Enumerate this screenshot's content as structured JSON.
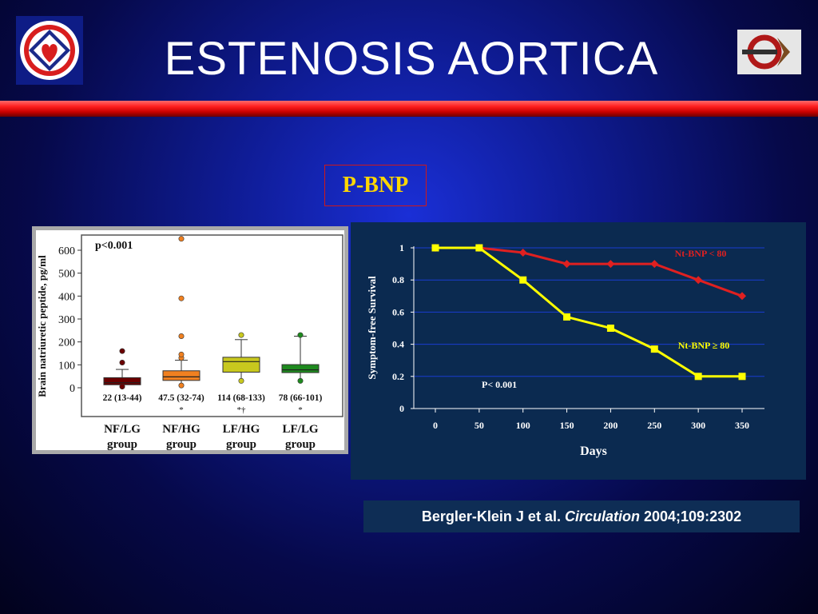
{
  "slide": {
    "title": "ESTENOSIS AORTICA",
    "badge": "P-BNP",
    "citation": {
      "authors": "Bergler-Klein J et al.",
      "journal": "Circulation",
      "ref": "2004;109:2302"
    }
  },
  "colors": {
    "background": "#0f1c96",
    "title_bar_red": "#e00000",
    "badge_text": "#ffd700",
    "nt_bnp_low": "#e02020",
    "nt_bnp_high": "#ffff00"
  },
  "chart_data": [
    {
      "type": "box",
      "ylabel": "Brain natriuretic peptide, pg/ml",
      "annotation": "p<0.001",
      "yticks": [
        0,
        100,
        200,
        300,
        400,
        500,
        600
      ],
      "ylim": [
        -100,
        650
      ],
      "grid": false,
      "groups": [
        {
          "label_line1": "NF/LG",
          "label_line2": "group",
          "median_text": "22 (13-44)",
          "marker": "",
          "color": "#6b0000",
          "median": 22,
          "q1": 13,
          "q3": 44,
          "whisker_low": 5,
          "whisker_high": 80,
          "outliers": [
            110,
            160,
            5
          ]
        },
        {
          "label_line1": "NF/HG",
          "label_line2": "group",
          "median_text": "47.5 (32-74)",
          "marker": "*",
          "color": "#f08020",
          "median": 47.5,
          "q1": 32,
          "q3": 74,
          "whisker_low": 10,
          "whisker_high": 120,
          "outliers": [
            130,
            145,
            225,
            390,
            650,
            10
          ]
        },
        {
          "label_line1": "LF/HG",
          "label_line2": "group",
          "median_text": "114 (68-133)",
          "marker": "*†",
          "color": "#c8c81e",
          "median": 114,
          "q1": 68,
          "q3": 133,
          "whisker_low": 30,
          "whisker_high": 210,
          "outliers": [
            230,
            30
          ]
        },
        {
          "label_line1": "LF/LG",
          "label_line2": "group",
          "median_text": "78 (66-101)",
          "marker": "*",
          "color": "#1e8a1e",
          "median": 78,
          "q1": 66,
          "q3": 101,
          "whisker_low": 30,
          "whisker_high": 225,
          "outliers": [
            230,
            30
          ]
        }
      ]
    },
    {
      "type": "line",
      "xlabel": "Days",
      "ylabel": "Symptom-free Survival",
      "annotation": "P< 0.001",
      "x": [
        0,
        50,
        100,
        150,
        200,
        250,
        300,
        350
      ],
      "xlim": [
        0,
        350
      ],
      "ylim": [
        0,
        1
      ],
      "yticks": [
        0,
        0.2,
        0.4,
        0.6,
        0.8,
        1
      ],
      "ytick_labels": [
        "0",
        "0.2",
        "0.4",
        "0.6",
        "0.8",
        "1"
      ],
      "grid": true,
      "series": [
        {
          "name": "Nt-BNP < 80",
          "color": "#e02020",
          "marker": "diamond",
          "values": [
            1.0,
            1.0,
            0.97,
            0.9,
            0.9,
            0.9,
            0.8,
            0.7
          ]
        },
        {
          "name": "Nt-BNP ≥ 80",
          "color": "#ffff00",
          "marker": "square",
          "values": [
            1.0,
            1.0,
            0.8,
            0.57,
            0.5,
            0.37,
            0.2,
            0.2
          ]
        }
      ]
    }
  ]
}
